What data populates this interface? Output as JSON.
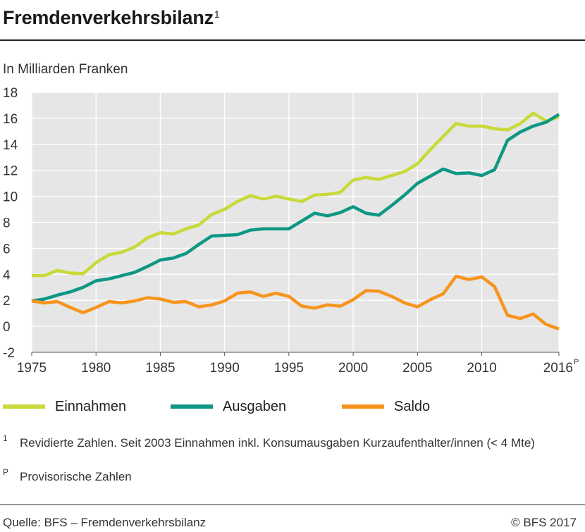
{
  "header": {
    "title": "Fremdenverkehrsbilanz",
    "title_note": "1"
  },
  "unit_label": "In Milliarden Franken",
  "legend": [
    {
      "name": "Einnahmen",
      "color": "#c8d93a"
    },
    {
      "name": "Ausgaben",
      "color": "#0e9784"
    },
    {
      "name": "Saldo",
      "color": "#f7941d"
    }
  ],
  "footnotes": [
    {
      "mark": "1",
      "text": "Revidierte Zahlen. Seit 2003 Einnahmen inkl. Konsumausgaben Kurzaufenthalter/innen (< 4 Mte)"
    },
    {
      "mark": "P",
      "text": "Provisorische Zahlen"
    }
  ],
  "footer": {
    "source": "Quelle: BFS – Fremdenverkehrsbilanz",
    "copyright": "© BFS 2017"
  },
  "chart_data": {
    "type": "line",
    "ylabel": "In Milliarden Franken",
    "xlim": [
      1975,
      2016
    ],
    "ylim": [
      -2,
      18
    ],
    "yticks": [
      -2,
      0,
      2,
      4,
      6,
      8,
      10,
      12,
      14,
      16,
      18
    ],
    "xticks": [
      {
        "value": 1975,
        "label": "1975"
      },
      {
        "value": 1980,
        "label": "1980"
      },
      {
        "value": 1985,
        "label": "1985"
      },
      {
        "value": 1990,
        "label": "1990"
      },
      {
        "value": 1995,
        "label": "1995"
      },
      {
        "value": 2000,
        "label": "2000"
      },
      {
        "value": 2005,
        "label": "2005"
      },
      {
        "value": 2010,
        "label": "2010"
      },
      {
        "value": 2016,
        "label": "2016",
        "note": "P"
      }
    ],
    "grid": true,
    "legend_position": "bottom",
    "x": [
      1975,
      1976,
      1977,
      1978,
      1979,
      1980,
      1981,
      1982,
      1983,
      1984,
      1985,
      1986,
      1987,
      1988,
      1989,
      1990,
      1991,
      1992,
      1993,
      1994,
      1995,
      1996,
      1997,
      1998,
      1999,
      2000,
      2001,
      2002,
      2003,
      2004,
      2005,
      2006,
      2007,
      2008,
      2009,
      2010,
      2011,
      2012,
      2013,
      2014,
      2015,
      2016
    ],
    "series": [
      {
        "name": "Einnahmen",
        "color": "#c8d93a",
        "values": [
          3.9,
          3.9,
          4.3,
          4.1,
          4.05,
          4.9,
          5.5,
          5.7,
          6.1,
          6.8,
          7.2,
          7.1,
          7.5,
          7.8,
          8.6,
          9.0,
          9.6,
          10.05,
          9.8,
          10.0,
          9.8,
          9.6,
          10.1,
          10.15,
          10.3,
          11.25,
          11.45,
          11.3,
          11.6,
          11.9,
          12.5,
          13.6,
          14.6,
          15.6,
          15.4,
          15.4,
          15.2,
          15.1,
          15.6,
          16.4,
          15.8,
          16.1
        ]
      },
      {
        "name": "Ausgaben",
        "color": "#0e9784",
        "values": [
          1.95,
          2.1,
          2.4,
          2.65,
          3.0,
          3.5,
          3.65,
          3.9,
          4.15,
          4.6,
          5.1,
          5.25,
          5.6,
          6.3,
          6.95,
          7.0,
          7.05,
          7.4,
          7.5,
          7.5,
          7.5,
          8.1,
          8.7,
          8.5,
          8.75,
          9.2,
          8.7,
          8.55,
          9.3,
          10.1,
          11.0,
          11.55,
          12.1,
          11.75,
          11.8,
          11.6,
          12.05,
          14.3,
          14.95,
          15.4,
          15.7,
          16.3
        ]
      },
      {
        "name": "Saldo",
        "color": "#f7941d",
        "values": [
          1.95,
          1.8,
          1.9,
          1.45,
          1.05,
          1.45,
          1.9,
          1.8,
          1.95,
          2.2,
          2.1,
          1.85,
          1.9,
          1.5,
          1.65,
          1.95,
          2.55,
          2.65,
          2.3,
          2.55,
          2.3,
          1.55,
          1.4,
          1.65,
          1.55,
          2.05,
          2.75,
          2.7,
          2.3,
          1.8,
          1.5,
          2.05,
          2.5,
          3.85,
          3.6,
          3.8,
          3.05,
          0.85,
          0.6,
          0.95,
          0.15,
          -0.2
        ]
      }
    ]
  }
}
